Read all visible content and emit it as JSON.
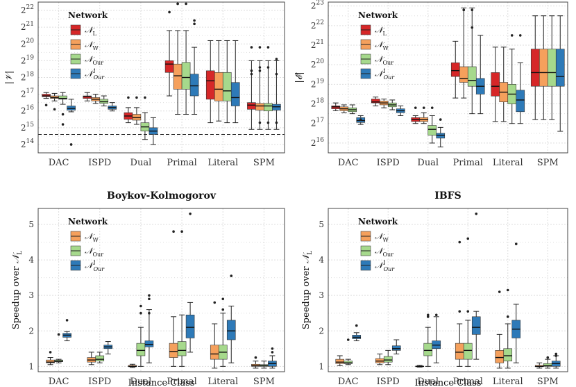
{
  "colors": {
    "NL": "#d62728",
    "NW": "#f5a05c",
    "NOur": "#a6d98c",
    "NOur1": "#2e7ab8"
  },
  "chart_data": [
    {
      "type": "boxplot",
      "ylabel": "|V|",
      "yscale": "log2",
      "ylim": [
        13.5,
        22.5
      ],
      "yticks": [
        {
          "exp": 14,
          "label": "2^14"
        },
        {
          "exp": 15,
          "label": "2^15"
        },
        {
          "exp": 16,
          "label": "2^16"
        },
        {
          "exp": 17,
          "label": "2^17"
        },
        {
          "exp": 18,
          "label": "2^18"
        },
        {
          "exp": 19,
          "label": "2^19"
        },
        {
          "exp": 20,
          "label": "2^20"
        },
        {
          "exp": 21,
          "label": "2^21"
        },
        {
          "exp": 22,
          "label": "2^22"
        }
      ],
      "categories": [
        "DAC",
        "ISPD",
        "Dual",
        "Primal",
        "Literal",
        "SPM"
      ],
      "reference_line": 14.6,
      "legend": {
        "title": "Network",
        "entries": [
          {
            "key": "NL",
            "label": "N_L"
          },
          {
            "key": "NW",
            "label": "N_W"
          },
          {
            "key": "NOur",
            "label": "N_Our"
          },
          {
            "key": "NOur1",
            "label": "N¹_Our"
          }
        ]
      },
      "series": [
        {
          "key": "NL",
          "boxes": [
            [
              16.75,
              16.85,
              16.9,
              17.0,
              17.1
            ],
            [
              16.6,
              16.75,
              16.85,
              16.9,
              17.1
            ],
            [
              15.3,
              15.5,
              15.7,
              15.9,
              16.2
            ],
            [
              16.9,
              18.3,
              18.8,
              19.0,
              20.8
            ],
            [
              15.3,
              16.7,
              17.8,
              18.4,
              20.2
            ],
            [
              14.9,
              16.1,
              16.35,
              16.5,
              19.0
            ]
          ],
          "outliers": [
            [
              16.35
            ],
            [],
            [
              16.8
            ],
            [
              21.9
            ],
            [],
            [
              19.8,
              18.4,
              18.2
            ]
          ]
        },
        {
          "key": "NW",
          "boxes": [
            [
              16.6,
              16.75,
              16.8,
              16.9,
              17.05
            ],
            [
              16.45,
              16.6,
              16.7,
              16.8,
              17.0
            ],
            [
              15.2,
              15.45,
              15.6,
              15.8,
              16.2
            ],
            [
              15.8,
              17.3,
              18.1,
              18.8,
              20.8
            ],
            [
              15.4,
              16.6,
              17.3,
              18.3,
              20.2
            ],
            [
              14.9,
              16.05,
              16.3,
              16.45,
              19.0
            ]
          ],
          "outliers": [
            [
              16.1
            ],
            [],
            [
              16.8
            ],
            [
              22.4,
              22.4
            ],
            [],
            [
              19.8,
              18.6,
              18.4,
              15.3
            ]
          ]
        },
        {
          "key": "NOur",
          "boxes": [
            [
              16.4,
              16.7,
              16.75,
              16.9,
              17.1
            ],
            [
              16.3,
              16.45,
              16.55,
              16.7,
              16.9
            ],
            [
              14.3,
              14.8,
              15.05,
              15.3,
              15.9
            ],
            [
              15.8,
              17.3,
              18.0,
              18.9,
              20.8
            ],
            [
              15.3,
              16.6,
              17.2,
              18.3,
              20.2
            ],
            [
              14.9,
              16.0,
              16.3,
              16.45,
              19.0
            ]
          ],
          "outliers": [
            [
              15.8,
              15.2
            ],
            [],
            [
              16.8
            ],
            [
              22.4
            ],
            [],
            [
              19.8,
              18.6,
              15.3
            ]
          ]
        },
        {
          "key": "NOur1",
          "boxes": [
            [
              15.95,
              16.05,
              16.15,
              16.3,
              16.7
            ],
            [
              16.0,
              16.1,
              16.2,
              16.3,
              16.5
            ],
            [
              14.0,
              14.6,
              14.8,
              15.0,
              15.6
            ],
            [
              15.8,
              16.9,
              17.5,
              18.2,
              19.8
            ],
            [
              15.3,
              16.3,
              16.8,
              17.7,
              20.2
            ],
            [
              14.9,
              16.05,
              16.25,
              16.4,
              19.0
            ]
          ],
          "outliers": [
            [
              14.0
            ],
            [],
            [],
            [
              21.4,
              21.2
            ],
            [],
            [
              19.1,
              18.2,
              15.3
            ]
          ]
        }
      ]
    },
    {
      "type": "boxplot",
      "ylabel": "|E|",
      "yscale": "log2",
      "ylim": [
        15.5,
        23.2
      ],
      "yticks": [
        {
          "exp": 16,
          "label": "2^16"
        },
        {
          "exp": 17,
          "label": "2^17"
        },
        {
          "exp": 18,
          "label": "2^18"
        },
        {
          "exp": 19,
          "label": "2^19"
        },
        {
          "exp": 20,
          "label": "2^20"
        },
        {
          "exp": 21,
          "label": "2^21"
        },
        {
          "exp": 22,
          "label": "2^22"
        },
        {
          "exp": 23,
          "label": "2^23"
        }
      ],
      "categories": [
        "DAC",
        "ISPD",
        "Dual",
        "Primal",
        "Literal",
        "SPM"
      ],
      "legend": {
        "title": "Network",
        "entries": [
          {
            "key": "NL",
            "label": "N_L"
          },
          {
            "key": "NW",
            "label": "N_W"
          },
          {
            "key": "NOur",
            "label": "N_Our"
          },
          {
            "key": "NOur1",
            "label": "N¹_Our"
          }
        ]
      },
      "series": [
        {
          "key": "NL",
          "boxes": [
            [
              17.65,
              17.75,
              17.85,
              17.9,
              18.05
            ],
            [
              17.9,
              18.05,
              18.1,
              18.25,
              18.35
            ],
            [
              17.0,
              17.1,
              17.2,
              17.3,
              17.4
            ],
            [
              18.3,
              19.4,
              19.7,
              20.1,
              21.2
            ],
            [
              17.1,
              18.4,
              18.9,
              19.6,
              20.9
            ],
            [
              17.2,
              18.9,
              19.6,
              20.8,
              22.5
            ]
          ],
          "outliers": [
            [],
            [],
            [
              17.8
            ],
            [],
            [],
            []
          ]
        },
        {
          "key": "NW",
          "boxes": [
            [
              17.55,
              17.65,
              17.75,
              17.85,
              17.95
            ],
            [
              17.8,
              17.95,
              18.05,
              18.15,
              18.25
            ],
            [
              17.0,
              17.1,
              17.2,
              17.3,
              17.55
            ],
            [
              18.3,
              19.1,
              19.3,
              19.9,
              22.9
            ],
            [
              17.1,
              18.1,
              18.6,
              19.1,
              20.9
            ],
            [
              17.2,
              18.9,
              19.6,
              20.8,
              22.5
            ]
          ],
          "outliers": [
            [],
            [],
            [
              17.8
            ],
            [
              22.8,
              22.8
            ],
            [],
            []
          ]
        },
        {
          "key": "NOur",
          "boxes": [
            [
              17.5,
              17.6,
              17.7,
              17.8,
              17.95
            ],
            [
              17.7,
              17.85,
              17.95,
              18.05,
              18.2
            ],
            [
              16.0,
              16.4,
              16.7,
              16.9,
              17.4
            ],
            [
              17.5,
              18.9,
              19.2,
              19.9,
              22.9
            ],
            [
              17.0,
              18.0,
              18.5,
              19.0,
              20.8
            ],
            [
              17.2,
              18.9,
              19.6,
              20.8,
              22.5
            ]
          ],
          "outliers": [
            [],
            [],
            [
              17.8
            ],
            [
              22.8,
              21.9
            ],
            [
              21.5
            ],
            []
          ]
        },
        {
          "key": "NOur1",
          "boxes": [
            [
              16.95,
              17.05,
              17.15,
              17.3,
              17.4
            ],
            [
              17.4,
              17.55,
              17.65,
              17.75,
              17.9
            ],
            [
              15.8,
              16.25,
              16.4,
              16.5,
              16.8
            ],
            [
              17.5,
              18.5,
              18.9,
              19.3,
              21.5
            ],
            [
              17.0,
              17.6,
              18.2,
              18.7,
              20.1
            ],
            [
              16.6,
              18.9,
              19.4,
              20.8,
              22.5
            ]
          ],
          "outliers": [
            [
              17.2
            ],
            [],
            [
              17.2
            ],
            [],
            [
              21.5
            ],
            []
          ]
        }
      ]
    },
    {
      "type": "boxplot",
      "title": "Boykov-Kolmogorov",
      "ylabel": "Speedup over N_L",
      "xlabel": "Instance Class",
      "ylim": [
        0.85,
        5.45
      ],
      "yticks": [
        1,
        2,
        3,
        4,
        5
      ],
      "categories": [
        "DAC",
        "ISPD",
        "Dual",
        "Primal",
        "Literal",
        "SPM"
      ],
      "legend": {
        "title": "Network",
        "entries": [
          {
            "key": "NW",
            "label": "N_W"
          },
          {
            "key": "NOur",
            "label": "N_Our"
          },
          {
            "key": "NOur1",
            "label": "N¹_Our"
          }
        ]
      },
      "series": [
        {
          "key": "NW",
          "boxes": [
            [
              1.05,
              1.1,
              1.12,
              1.18,
              1.25
            ],
            [
              1.05,
              1.12,
              1.18,
              1.25,
              1.4
            ],
            [
              0.97,
              0.99,
              1.0,
              1.03,
              1.06
            ],
            [
              1.0,
              1.25,
              1.42,
              1.65,
              2.4
            ],
            [
              0.95,
              1.2,
              1.35,
              1.6,
              2.2
            ],
            [
              0.95,
              1.0,
              1.02,
              1.06,
              1.15
            ]
          ],
          "outliers": [
            [
              1.4
            ],
            [],
            [],
            [
              4.8
            ],
            [
              2.8
            ],
            [
              1.25
            ]
          ]
        },
        {
          "key": "NOur",
          "boxes": [
            [
              1.1,
              1.13,
              1.15,
              1.18,
              1.2
            ],
            [
              1.1,
              1.15,
              1.2,
              1.3,
              1.4
            ],
            [
              1.0,
              1.3,
              1.45,
              1.65,
              2.1
            ],
            [
              1.0,
              1.3,
              1.45,
              1.7,
              2.45
            ],
            [
              1.0,
              1.2,
              1.4,
              1.6,
              2.5
            ],
            [
              0.95,
              1.0,
              1.02,
              1.05,
              1.15
            ]
          ],
          "outliers": [
            [
              1.9
            ],
            [],
            [
              2.7,
              2.5
            ],
            [
              4.8
            ],
            [
              2.9,
              2.6
            ],
            []
          ]
        },
        {
          "key": "NOur1",
          "boxes": [
            [
              1.72,
              1.82,
              1.88,
              1.93,
              1.98
            ],
            [
              1.35,
              1.5,
              1.55,
              1.6,
              1.7
            ],
            [
              1.1,
              1.55,
              1.62,
              1.72,
              2.6
            ],
            [
              1.4,
              1.8,
              2.1,
              2.45,
              2.8
            ],
            [
              1.1,
              1.75,
              2.0,
              2.3,
              2.7
            ],
            [
              0.95,
              1.0,
              1.08,
              1.15,
              1.3
            ]
          ],
          "outliers": [
            [
              2.3
            ],
            [],
            [
              2.9,
              3.0,
              2.5
            ],
            [
              5.3
            ],
            [
              3.55
            ],
            [
              1.4,
              1.5
            ]
          ]
        }
      ]
    },
    {
      "type": "boxplot",
      "title": "IBFS",
      "ylabel": "Speedup over N_L",
      "xlabel": "Instance Class",
      "ylim": [
        0.85,
        5.45
      ],
      "yticks": [
        1,
        2,
        3,
        4,
        5
      ],
      "categories": [
        "DAC",
        "ISPD",
        "Dual",
        "Primal",
        "Literal",
        "SPM"
      ],
      "legend": {
        "title": "Network",
        "entries": [
          {
            "key": "NW",
            "label": "N_W"
          },
          {
            "key": "NOur",
            "label": "N_Our"
          },
          {
            "key": "NOur1",
            "label": "N¹_Our"
          }
        ]
      },
      "series": [
        {
          "key": "NW",
          "boxes": [
            [
              1.02,
              1.08,
              1.12,
              1.2,
              1.3
            ],
            [
              1.05,
              1.1,
              1.15,
              1.22,
              1.35
            ],
            [
              0.98,
              0.99,
              1.0,
              1.01,
              1.03
            ],
            [
              1.0,
              1.2,
              1.4,
              1.65,
              2.2
            ],
            [
              0.95,
              1.1,
              1.25,
              1.45,
              1.9
            ],
            [
              0.95,
              0.99,
              1.0,
              1.03,
              1.1
            ]
          ],
          "outliers": [
            [],
            [],
            [],
            [
              4.5,
              2.55
            ],
            [
              3.1
            ],
            []
          ]
        },
        {
          "key": "NOur",
          "boxes": [
            [
              1.05,
              1.08,
              1.1,
              1.15,
              1.2
            ],
            [
              1.05,
              1.12,
              1.18,
              1.28,
              1.45
            ],
            [
              1.0,
              1.3,
              1.45,
              1.65,
              2.1
            ],
            [
              1.0,
              1.2,
              1.45,
              1.65,
              2.3
            ],
            [
              0.95,
              1.15,
              1.3,
              1.5,
              2.2
            ],
            [
              0.95,
              1.0,
              1.02,
              1.08,
              1.2
            ]
          ],
          "outliers": [
            [
              1.75
            ],
            [],
            [
              2.45,
              2.4
            ],
            [
              4.6,
              2.55
            ],
            [
              3.15,
              2.4
            ],
            [
              1.25
            ]
          ]
        },
        {
          "key": "NOur1",
          "boxes": [
            [
              1.72,
              1.78,
              1.82,
              1.88,
              1.95
            ],
            [
              1.35,
              1.45,
              1.5,
              1.58,
              1.75
            ],
            [
              1.1,
              1.5,
              1.6,
              1.72,
              2.4
            ],
            [
              1.2,
              1.9,
              2.1,
              2.4,
              2.55
            ],
            [
              1.1,
              1.8,
              2.05,
              2.3,
              2.75
            ],
            [
              0.95,
              1.0,
              1.08,
              1.15,
              1.3
            ]
          ],
          "outliers": [
            [
              2.15
            ],
            [],
            [
              2.45
            ],
            [
              5.3
            ],
            [
              4.45
            ],
            [
              1.3,
              1.35
            ]
          ]
        }
      ]
    }
  ]
}
